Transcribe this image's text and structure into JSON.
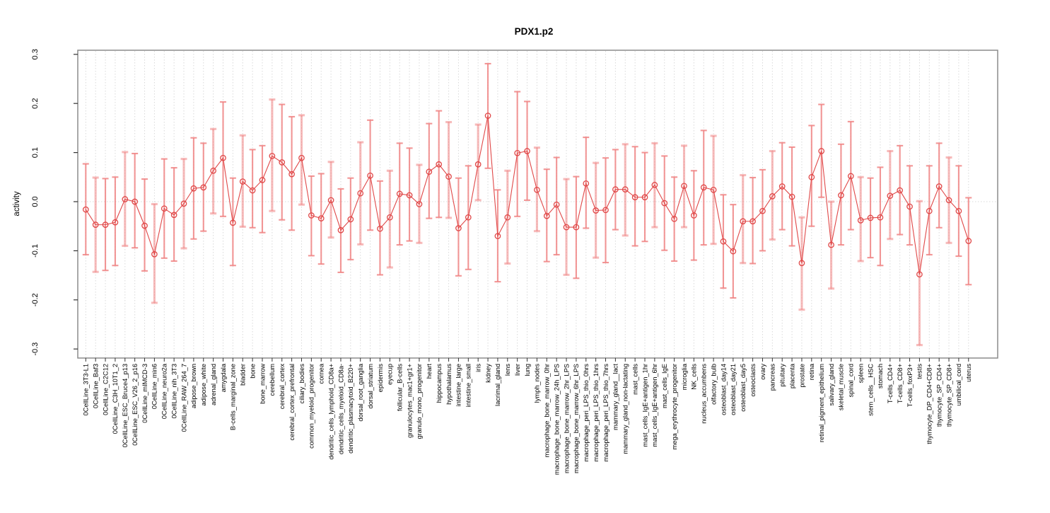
{
  "window": {
    "background": "#ffffff"
  },
  "chart_data": {
    "type": "line",
    "subtype": "points-with-error-bars",
    "title": "PDX1.p2",
    "xlabel": "",
    "ylabel": "activity",
    "ylim": [
      -0.3,
      0.3
    ],
    "ytick_labels": [
      "0.3",
      "0.2",
      "0.1",
      "0.0",
      "-0.1",
      "-0.2",
      "-0.3"
    ],
    "ytick_values": [
      0.3,
      0.2,
      0.1,
      0.0,
      -0.1,
      -0.2,
      -0.3
    ],
    "grid": "vertical dotted gridline per category; horizontal dotted line at y=0",
    "legend": "none",
    "marker": "open-circle",
    "colors": {
      "point": "#e04848",
      "line": "#e04848",
      "errorbar": "#f08484",
      "grid": "#d9d9d9",
      "zero_line": "#d9d9d9",
      "axis_box": "#8c8c8c",
      "tick": "#333333",
      "text": "#000000"
    },
    "categories": [
      "0CellLine_3T3-L1",
      "0CellLine_Baf3",
      "0CellLine_C2C12",
      "0CellLine_C3H_10T1_2",
      "0CellLine_ESC_Bruce4_p13",
      "0CellLine_ESC_V26_2_p16",
      "0CellLine_mIMCD-3",
      "0CellLine_min6",
      "0CellLine_neuro2a",
      "0CellLine_nih_3T3",
      "0CellLine_RAW_264_7",
      "adipose_brown",
      "adipose_white",
      "adrenal_gland",
      "amygdala",
      "B-cells_marginal_zone",
      "bladder",
      "bone",
      "bone_marrow",
      "cerebellum",
      "cerebral_cortex",
      "cerebral_cortex_prefrontal",
      "ciliary_bodies",
      "common_myeloid_progenitor",
      "cornea",
      "dendritic_cells_lymphoid_CD8a+",
      "dendritic_cells_myeloid_CD8a-",
      "dendritic_plasmacytoid_B220+",
      "dorsal_root_ganglia",
      "dorsal_striatum",
      "epidermis",
      "eyecup",
      "follicular_B-cells",
      "granulocytes_mac1+gr1+",
      "granulo_mono_progenitor",
      "heart",
      "hippocampus",
      "hypothalamus",
      "intestine_large",
      "intestine_small",
      "iris",
      "kidney",
      "lacrimal_gland",
      "lens",
      "liver",
      "lung",
      "lymph_nodes",
      "macrophage_bone_marrow_0hr",
      "macrophage_bone_marrow_24h_LPS",
      "macrophage_bone_marrow_2hr_LPS",
      "macrophage_bone_marrow_6hr_LPS",
      "macrophage_peri_LPS_thio_0hrs",
      "macrophage_peri_LPS_thio_1hrs",
      "macrophage_peri_LPS_thio_7hrs",
      "mammary_gland__lact",
      "mammary_gland_non-lactating",
      "mast_cells",
      "mast_cells_IgE+antigen_1hr",
      "mast_cells_IgE+antigen_6hr",
      "mast_cells_IgE",
      "mega_erythrocyte_progenitor",
      "microglia",
      "NK_cells",
      "nucleus_accumbens",
      "olfactory_bulb",
      "osteoblast_day14",
      "osteoblast_day21",
      "osteoblast_day5",
      "osteoclasts",
      "ovary",
      "pancreas",
      "pituitary",
      "placenta",
      "prostate",
      "retina",
      "retinal_pigment_epithelium",
      "salivary_gland",
      "skeletal_muscle",
      "spinal_cord",
      "spleen",
      "stem_cells__HSC",
      "stomach",
      "T-cells_CD4+",
      "T-cells_CD8+",
      "T-cells_foxP3+",
      "testis",
      "thymocyte_DP_CD4+CD8+",
      "thymocyte_SP_CD4+",
      "thymocyte_SP_CD8+",
      "umbilical_cord",
      "uterus"
    ],
    "series": [
      {
        "name": "activity",
        "values": [
          -0.016,
          -0.047,
          -0.047,
          -0.042,
          0.005,
          0.0,
          -0.049,
          -0.107,
          -0.014,
          -0.027,
          -0.004,
          0.027,
          0.029,
          0.063,
          0.089,
          -0.043,
          0.041,
          0.023,
          0.044,
          0.093,
          0.08,
          0.056,
          0.089,
          -0.028,
          -0.034,
          0.003,
          -0.058,
          -0.036,
          0.017,
          0.053,
          -0.055,
          -0.032,
          0.016,
          0.013,
          -0.005,
          0.061,
          0.076,
          0.051,
          -0.054,
          -0.032,
          0.076,
          0.175,
          -0.07,
          -0.032,
          0.099,
          0.103,
          0.024,
          -0.029,
          -0.006,
          -0.052,
          -0.052,
          0.037,
          -0.018,
          -0.017,
          0.025,
          0.025,
          0.009,
          0.009,
          0.034,
          -0.003,
          -0.035,
          0.032,
          -0.028,
          0.029,
          0.024,
          -0.081,
          -0.101,
          -0.04,
          -0.04,
          -0.019,
          0.011,
          0.031,
          0.01,
          -0.125,
          0.05,
          0.103,
          -0.088,
          0.013,
          0.052,
          -0.038,
          -0.033,
          -0.032,
          0.012,
          0.023,
          -0.01,
          -0.148,
          -0.019,
          0.031,
          0.003,
          -0.019,
          -0.08
        ],
        "lower": [
          -0.108,
          -0.143,
          -0.14,
          -0.13,
          -0.09,
          -0.094,
          -0.141,
          -0.206,
          -0.115,
          -0.121,
          -0.095,
          -0.076,
          -0.06,
          -0.024,
          -0.03,
          -0.13,
          -0.051,
          -0.053,
          -0.063,
          -0.019,
          -0.037,
          -0.058,
          -0.006,
          -0.11,
          -0.127,
          -0.073,
          -0.144,
          -0.118,
          -0.087,
          -0.058,
          -0.149,
          -0.134,
          -0.088,
          -0.08,
          -0.084,
          -0.034,
          -0.032,
          -0.033,
          -0.151,
          -0.138,
          0.003,
          0.068,
          -0.163,
          -0.126,
          -0.03,
          0.003,
          -0.06,
          -0.122,
          -0.108,
          -0.149,
          -0.156,
          -0.054,
          -0.114,
          -0.124,
          -0.057,
          -0.069,
          -0.09,
          -0.081,
          -0.052,
          -0.099,
          -0.121,
          -0.052,
          -0.119,
          -0.088,
          -0.086,
          -0.176,
          -0.196,
          -0.125,
          -0.126,
          -0.1,
          -0.077,
          -0.057,
          -0.09,
          -0.22,
          -0.05,
          0.009,
          -0.177,
          -0.088,
          -0.057,
          -0.121,
          -0.114,
          -0.13,
          -0.076,
          -0.067,
          -0.088,
          -0.292,
          -0.108,
          -0.053,
          -0.084,
          -0.111,
          -0.169
        ],
        "upper": [
          0.077,
          0.049,
          0.047,
          0.05,
          0.101,
          0.098,
          0.046,
          -0.005,
          0.087,
          0.069,
          0.087,
          0.13,
          0.119,
          0.148,
          0.203,
          0.048,
          0.135,
          0.106,
          0.114,
          0.208,
          0.198,
          0.173,
          0.176,
          0.052,
          0.057,
          0.081,
          0.026,
          0.048,
          0.121,
          0.166,
          0.042,
          0.063,
          0.119,
          0.109,
          0.075,
          0.159,
          0.185,
          0.162,
          0.048,
          0.073,
          0.157,
          0.281,
          0.024,
          0.063,
          0.224,
          0.204,
          0.11,
          0.066,
          0.09,
          0.046,
          0.051,
          0.131,
          0.079,
          0.089,
          0.106,
          0.117,
          0.112,
          0.1,
          0.119,
          0.093,
          0.05,
          0.114,
          0.063,
          0.145,
          0.134,
          0.014,
          -0.006,
          0.054,
          0.049,
          0.065,
          0.103,
          0.12,
          0.111,
          -0.032,
          0.155,
          0.198,
          0.0,
          0.117,
          0.163,
          0.05,
          0.048,
          0.07,
          0.103,
          0.114,
          0.073,
          0.001,
          0.073,
          0.119,
          0.09,
          0.073,
          0.008
        ]
      }
    ]
  }
}
